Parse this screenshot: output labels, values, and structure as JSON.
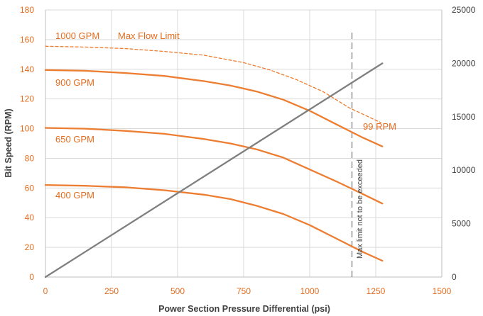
{
  "chart_data": {
    "type": "line",
    "xlabel": "Power Section Pressure Differential (psi)",
    "ylabel": "Bit Speed (RPM)",
    "xlim": [
      0,
      1500
    ],
    "ylim": [
      0,
      180
    ],
    "y2lim": [
      0,
      25000
    ],
    "x_ticks": [
      "0",
      "250",
      "500",
      "750",
      "1000",
      "1250",
      "1500"
    ],
    "y_ticks": [
      "0",
      "20",
      "40",
      "60",
      "80",
      "100",
      "120",
      "140",
      "160",
      "180"
    ],
    "y2_ticks": [
      "0",
      "5000",
      "10000",
      "15000",
      "20000",
      "25000"
    ],
    "grid": true,
    "colors": {
      "rpm": "#ed7d31",
      "torque": "#7f7f7f",
      "limit": "#7f7f7f"
    },
    "series": [
      {
        "name": "1000 GPM",
        "style": "dashed",
        "axis": "left",
        "x": [
          0,
          150,
          300,
          450,
          600,
          750,
          850,
          950,
          1050,
          1150,
          1270
        ],
        "y": [
          155.5,
          155,
          154,
          152,
          149.5,
          144.5,
          139.5,
          133,
          125,
          114,
          104
        ]
      },
      {
        "name": "900 GPM",
        "style": "solid",
        "axis": "left",
        "x": [
          0,
          150,
          300,
          450,
          600,
          700,
          800,
          900,
          1000,
          1100,
          1200,
          1275
        ],
        "y": [
          139.5,
          139,
          137.5,
          135.5,
          132,
          129,
          125,
          119.5,
          112,
          103,
          94,
          88
        ]
      },
      {
        "name": "650 GPM",
        "style": "solid",
        "axis": "left",
        "x": [
          0,
          150,
          300,
          450,
          600,
          700,
          800,
          900,
          1000,
          1100,
          1200,
          1275
        ],
        "y": [
          100.5,
          100,
          98.5,
          96.5,
          93,
          90,
          86,
          80.5,
          72.5,
          64.5,
          56,
          49.5
        ]
      },
      {
        "name": "400 GPM",
        "style": "solid",
        "axis": "left",
        "x": [
          0,
          150,
          300,
          450,
          600,
          700,
          800,
          900,
          1000,
          1100,
          1200,
          1275
        ],
        "y": [
          62,
          61.5,
          60.5,
          58.5,
          55.5,
          52.5,
          48,
          42.5,
          35,
          26,
          17,
          11
        ]
      },
      {
        "name": "",
        "style": "solid",
        "axis": "right",
        "x": [
          0,
          1275
        ],
        "y": [
          0,
          20000
        ]
      }
    ],
    "annotations": {
      "max_flow": "Max Flow Limit",
      "end_rpm": "99 RPM",
      "limit_line_x": 1160,
      "limit_text": "Max limit not to be exceeded"
    }
  }
}
